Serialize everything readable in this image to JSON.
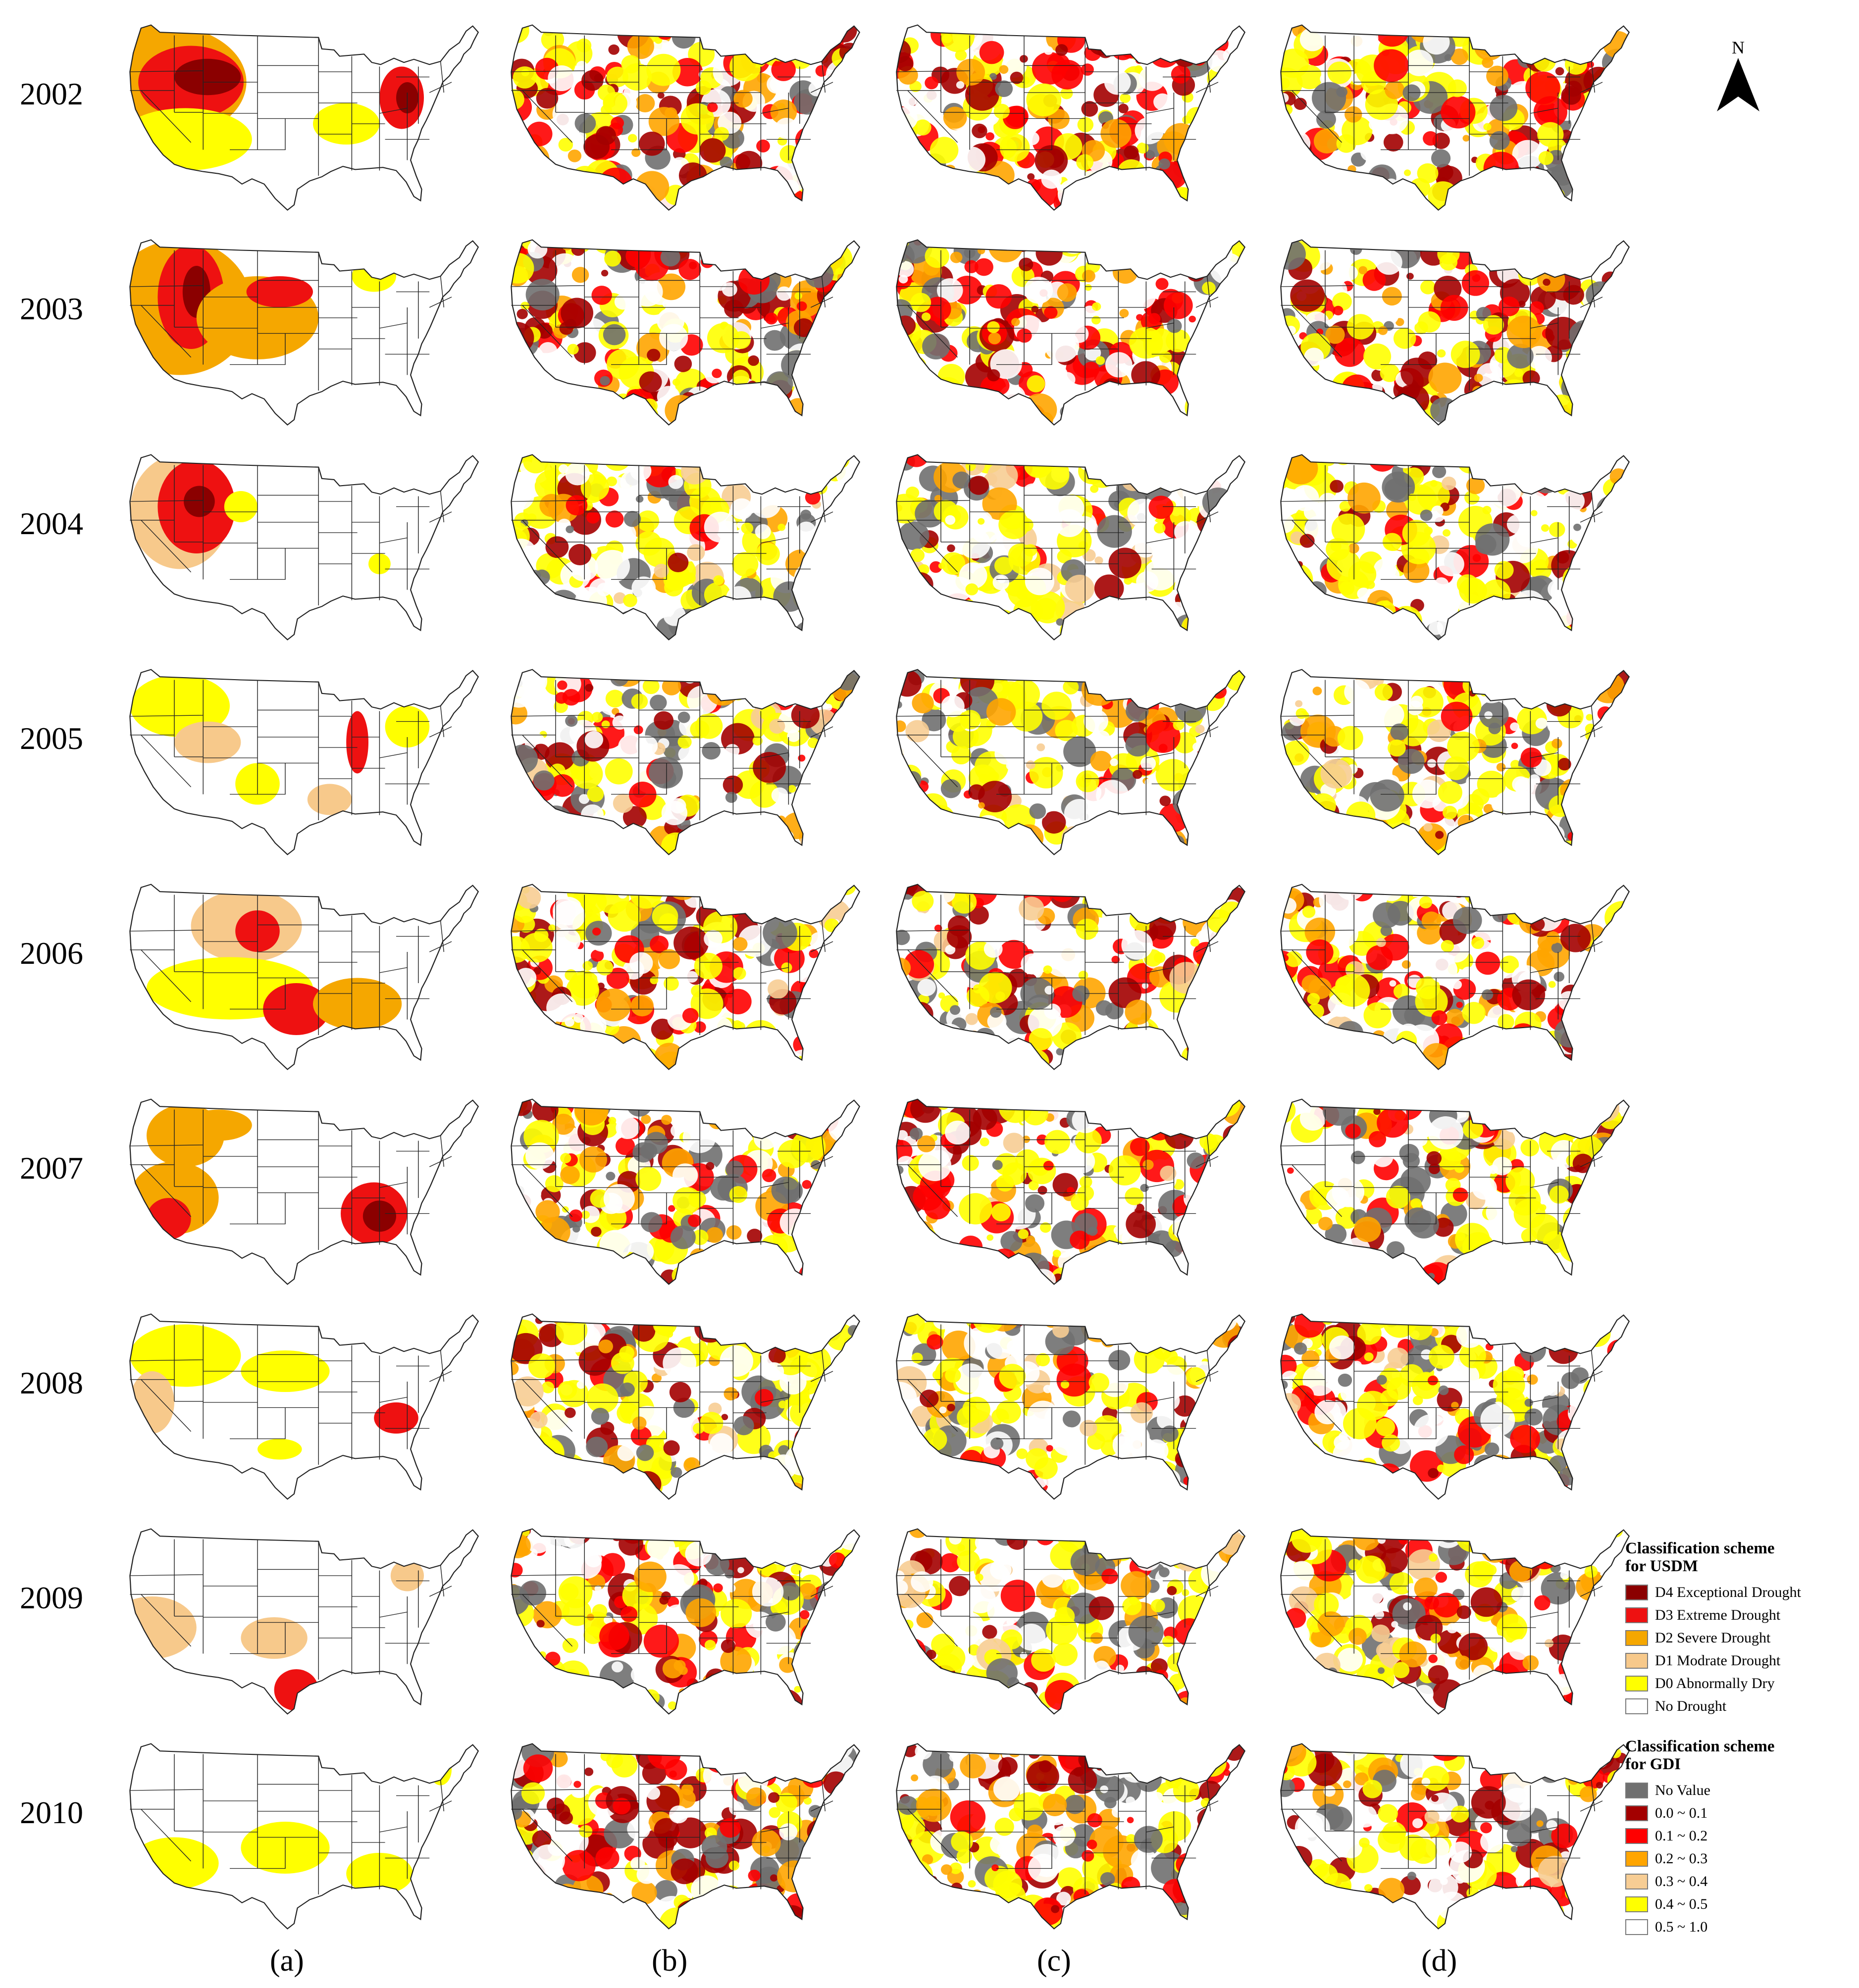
{
  "years": [
    "2002",
    "2003",
    "2004",
    "2005",
    "2006",
    "2007",
    "2008",
    "2009",
    "2010"
  ],
  "panel_labels": [
    "(a)",
    "(b)",
    "(c)",
    "(d)"
  ],
  "north_arrow": {
    "letter": "N"
  },
  "palette": {
    "d4": "#8b0000",
    "d3": "#ee1111",
    "d2": "#f5a700",
    "d1": "#f7c98b",
    "d0": "#ffff00",
    "none": "#ffffff",
    "novalue": "#707070",
    "g01": "#a30000",
    "g12": "#ff0000",
    "g23": "#ffa500",
    "g34": "#f7cd94",
    "g45": "#ffff00",
    "g510": "#ffffff",
    "stroke": "#222222"
  },
  "legend_usdm": {
    "title_line1": "Classification scheme",
    "title_line2": "for USDM",
    "items": [
      {
        "label": "D4 Exceptional Drought",
        "color": "#8b0000"
      },
      {
        "label": "D3 Extreme Drought",
        "color": "#ee1111"
      },
      {
        "label": "D2 Severe Drought",
        "color": "#f5a700"
      },
      {
        "label": "D1 Modrate Drought",
        "color": "#f7c98b"
      },
      {
        "label": "D0 Abnormally Dry",
        "color": "#ffff00"
      },
      {
        "label": "No Drought",
        "color": "#ffffff"
      }
    ]
  },
  "legend_gdi": {
    "title_line1": "Classification scheme",
    "title_line2": "for GDI",
    "items": [
      {
        "label": "No Value",
        "color": "#707070"
      },
      {
        "label": "0.0 ~ 0.1",
        "color": "#a30000"
      },
      {
        "label": "0.1 ~ 0.2",
        "color": "#ff0000"
      },
      {
        "label": "0.2 ~ 0.3",
        "color": "#ffa500"
      },
      {
        "label": "0.3 ~ 0.4",
        "color": "#f7cd94"
      },
      {
        "label": "0.4 ~ 0.5",
        "color": "#ffff00"
      },
      {
        "label": "0.5 ~ 1.0",
        "color": "#ffffff"
      }
    ]
  }
}
